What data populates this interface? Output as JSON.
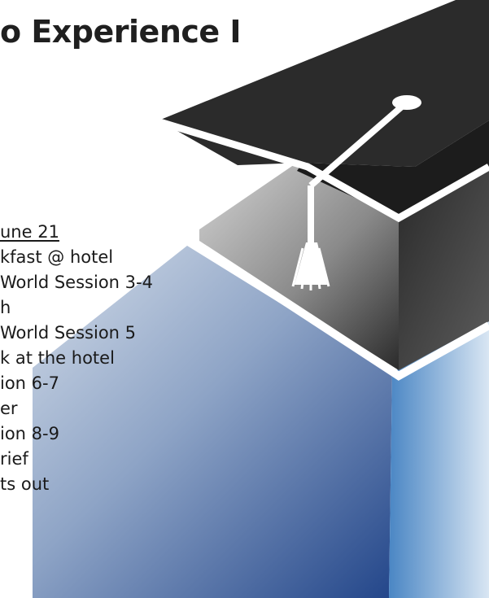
{
  "title": "o Experience I",
  "schedule": {
    "day_heading": "une 21",
    "items": [
      "kfast @ hotel",
      "World Session 3-4",
      "h",
      "World Session 5",
      "k at the hotel",
      "ion 6-7",
      "er",
      "ion 8-9",
      "rief",
      "ts out"
    ]
  },
  "graphic": {
    "icon": "graduation-cap-pyramid-icon",
    "colors": {
      "cap_top": "#2e2e2e",
      "cap_side": "#3a3a3a",
      "tassel": "#ffffff",
      "middle_layer": "#9a9a9a",
      "bottom_layer": "#3f5f9c",
      "accent_right": "#6fa6d8"
    }
  }
}
